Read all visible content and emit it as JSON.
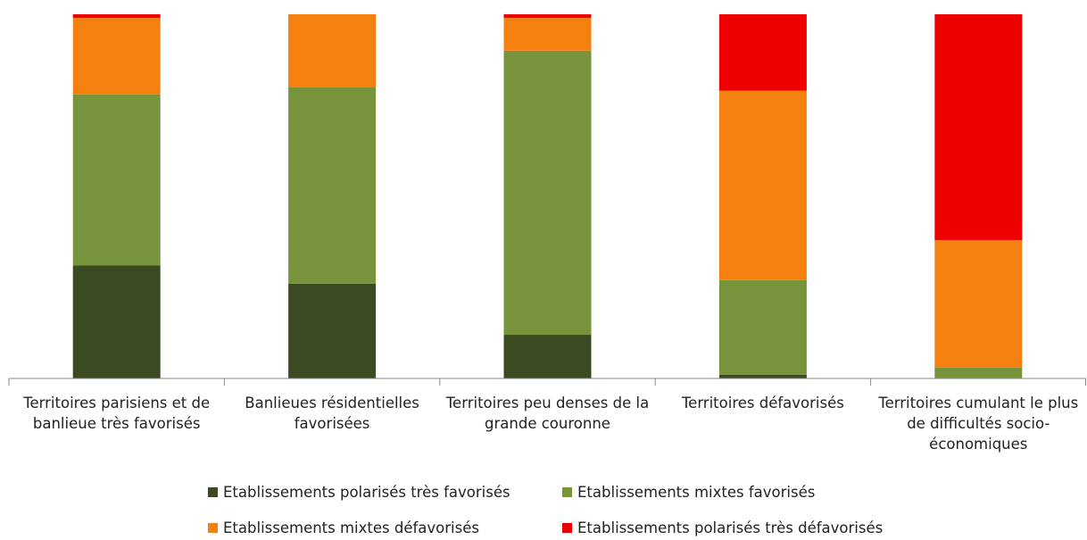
{
  "chart_data": {
    "type": "stacked_bar",
    "categories": [
      "Territoires parisiens et de banlieue très favorisés",
      "Banlieues résidentielles favorisées",
      "Territoires peu denses de la grande couronne",
      "Territoires défavorisés",
      "Territoires cumulant le plus de difficultés socio-économiques"
    ],
    "series": [
      {
        "name": "Etablissements polarisés très favorisés",
        "color": "#3b4a20",
        "values": [
          31,
          26,
          12,
          1,
          0
        ]
      },
      {
        "name": "Etablissements mixtes favorisés",
        "color": "#77933c",
        "values": [
          47,
          54,
          78,
          26,
          3
        ]
      },
      {
        "name": "Etablissements mixtes défavorisés",
        "color": "#f4810f",
        "values": [
          21,
          20,
          9,
          52,
          35
        ]
      },
      {
        "name": "Etablissements polarisés très défavorisés",
        "color": "#ee0000",
        "values": [
          1,
          0,
          1,
          21,
          62
        ]
      }
    ],
    "ylim": [
      0,
      100
    ],
    "legend": "bottom"
  }
}
